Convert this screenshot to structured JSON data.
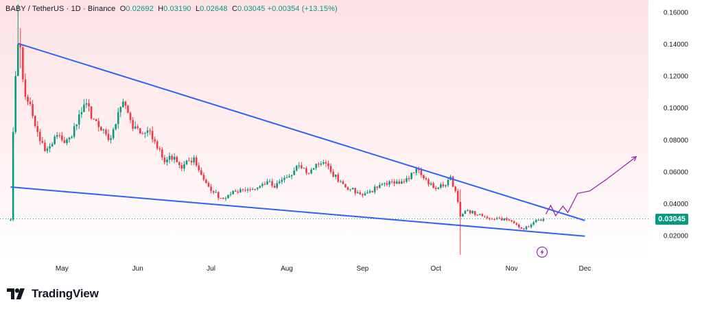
{
  "header": {
    "symbol": "BABY",
    "sep1": " / ",
    "quote": "TetherUS",
    "sep2": " · ",
    "interval": "1D",
    "sep3": " · ",
    "exchange": "Binance",
    "o_key": "O",
    "o_val": "0.02692",
    "h_key": "H",
    "h_val": "0.03190",
    "l_key": "L",
    "l_val": "0.02648",
    "c_key": "C",
    "c_val": "0.03045",
    "change": "+0.00354 (+13.15%)"
  },
  "last_price_label": "0.03045",
  "brand": {
    "name": "TradingView"
  },
  "colors": {
    "up": "#089981",
    "down": "#f23645",
    "trendline": "#2962ff",
    "projection": "#9c27b0",
    "bg_top": "#fde2e4",
    "bg_bottom": "#ffffff"
  },
  "icons": {
    "logo": "tradingview-logo-icon",
    "flash": "lightning-bolt-icon"
  },
  "chart_data": {
    "type": "candlestick",
    "title": "",
    "xlabel": "",
    "ylabel": "",
    "x_ticks": [
      "May",
      "Jun",
      "Jul",
      "Aug",
      "Sep",
      "Oct",
      "Nov",
      "Dec"
    ],
    "x_tick_dates": [
      "2025-05-01",
      "2025-06-01",
      "2025-07-01",
      "2025-08-01",
      "2025-09-01",
      "2025-10-01",
      "2025-11-01",
      "2025-12-01"
    ],
    "y_ticks": [
      "0.02000",
      "0.04000",
      "0.06000",
      "0.08000",
      "0.10000",
      "0.12000",
      "0.14000",
      "0.16000"
    ],
    "ylim": [
      0.0,
      0.165
    ],
    "xlim": [
      "2025-04-09",
      "2025-12-27"
    ],
    "grid": false,
    "last_price": 0.03045,
    "anchors": [
      [
        "2025-04-10",
        0.03
      ],
      [
        "2025-04-11",
        0.085
      ],
      [
        "2025-04-12",
        0.12
      ],
      [
        "2025-04-13",
        0.14
      ],
      [
        "2025-04-14",
        0.138
      ],
      [
        "2025-04-15",
        0.118
      ],
      [
        "2025-04-17",
        0.104
      ],
      [
        "2025-04-19",
        0.095
      ],
      [
        "2025-04-21",
        0.085
      ],
      [
        "2025-04-24",
        0.073
      ],
      [
        "2025-04-26",
        0.076
      ],
      [
        "2025-04-29",
        0.083
      ],
      [
        "2025-05-02",
        0.078
      ],
      [
        "2025-05-05",
        0.082
      ],
      [
        "2025-05-08",
        0.096
      ],
      [
        "2025-05-11",
        0.103
      ],
      [
        "2025-05-14",
        0.093
      ],
      [
        "2025-05-17",
        0.086
      ],
      [
        "2025-05-20",
        0.08
      ],
      [
        "2025-05-23",
        0.09
      ],
      [
        "2025-05-26",
        0.104
      ],
      [
        "2025-05-28",
        0.097
      ],
      [
        "2025-05-30",
        0.087
      ],
      [
        "2025-06-02",
        0.084
      ],
      [
        "2025-06-05",
        0.086
      ],
      [
        "2025-06-08",
        0.079
      ],
      [
        "2025-06-10",
        0.074
      ],
      [
        "2025-06-12",
        0.066
      ],
      [
        "2025-06-14",
        0.07
      ],
      [
        "2025-06-17",
        0.066
      ],
      [
        "2025-06-19",
        0.062
      ],
      [
        "2025-06-22",
        0.067
      ],
      [
        "2025-06-24",
        0.069
      ],
      [
        "2025-06-26",
        0.061
      ],
      [
        "2025-06-28",
        0.055
      ],
      [
        "2025-07-02",
        0.047
      ],
      [
        "2025-07-06",
        0.043
      ],
      [
        "2025-07-09",
        0.046
      ],
      [
        "2025-07-13",
        0.049
      ],
      [
        "2025-07-16",
        0.049
      ],
      [
        "2025-07-20",
        0.05
      ],
      [
        "2025-07-24",
        0.054
      ],
      [
        "2025-07-27",
        0.05
      ],
      [
        "2025-07-30",
        0.055
      ],
      [
        "2025-08-03",
        0.058
      ],
      [
        "2025-08-06",
        0.064
      ],
      [
        "2025-08-10",
        0.059
      ],
      [
        "2025-08-13",
        0.065
      ],
      [
        "2025-08-16",
        0.066
      ],
      [
        "2025-08-19",
        0.06
      ],
      [
        "2025-08-23",
        0.054
      ],
      [
        "2025-08-27",
        0.049
      ],
      [
        "2025-08-31",
        0.046
      ],
      [
        "2025-09-03",
        0.047
      ],
      [
        "2025-09-07",
        0.05
      ],
      [
        "2025-09-11",
        0.052
      ],
      [
        "2025-09-15",
        0.054
      ],
      [
        "2025-09-19",
        0.056
      ],
      [
        "2025-09-23",
        0.062
      ],
      [
        "2025-09-26",
        0.056
      ],
      [
        "2025-09-30",
        0.05
      ],
      [
        "2025-10-04",
        0.051
      ],
      [
        "2025-10-07",
        0.057
      ],
      [
        "2025-10-09",
        0.048
      ],
      [
        "2025-10-11",
        0.032
      ],
      [
        "2025-10-14",
        0.036
      ],
      [
        "2025-10-18",
        0.033
      ],
      [
        "2025-10-22",
        0.031
      ],
      [
        "2025-10-26",
        0.031
      ],
      [
        "2025-10-30",
        0.03
      ],
      [
        "2025-11-03",
        0.027
      ],
      [
        "2025-11-06",
        0.024
      ],
      [
        "2025-11-09",
        0.027
      ],
      [
        "2025-11-12",
        0.03
      ],
      [
        "2025-11-14",
        0.0305
      ]
    ],
    "wicks": [
      [
        "2025-04-13",
        0.128,
        0.165
      ],
      [
        "2025-04-14",
        0.125,
        0.15
      ],
      [
        "2025-10-11",
        0.008,
        0.049
      ]
    ],
    "trendlines": [
      {
        "from": [
          "2025-04-13",
          0.1405
        ],
        "to": [
          "2025-12-01",
          0.0295
        ]
      },
      {
        "from": [
          "2025-04-10",
          0.0505
        ],
        "to": [
          "2025-12-01",
          0.0197
        ]
      }
    ],
    "projection": [
      [
        "2025-11-15",
        0.0335
      ],
      [
        "2025-11-17",
        0.039
      ],
      [
        "2025-11-19",
        0.0325
      ],
      [
        "2025-11-22",
        0.0385
      ],
      [
        "2025-11-24",
        0.0345
      ],
      [
        "2025-11-28",
        0.0465
      ],
      [
        "2025-12-03",
        0.048
      ],
      [
        "2025-12-10",
        0.0555
      ],
      [
        "2025-12-16",
        0.0625
      ],
      [
        "2025-12-22",
        0.0695
      ]
    ]
  }
}
